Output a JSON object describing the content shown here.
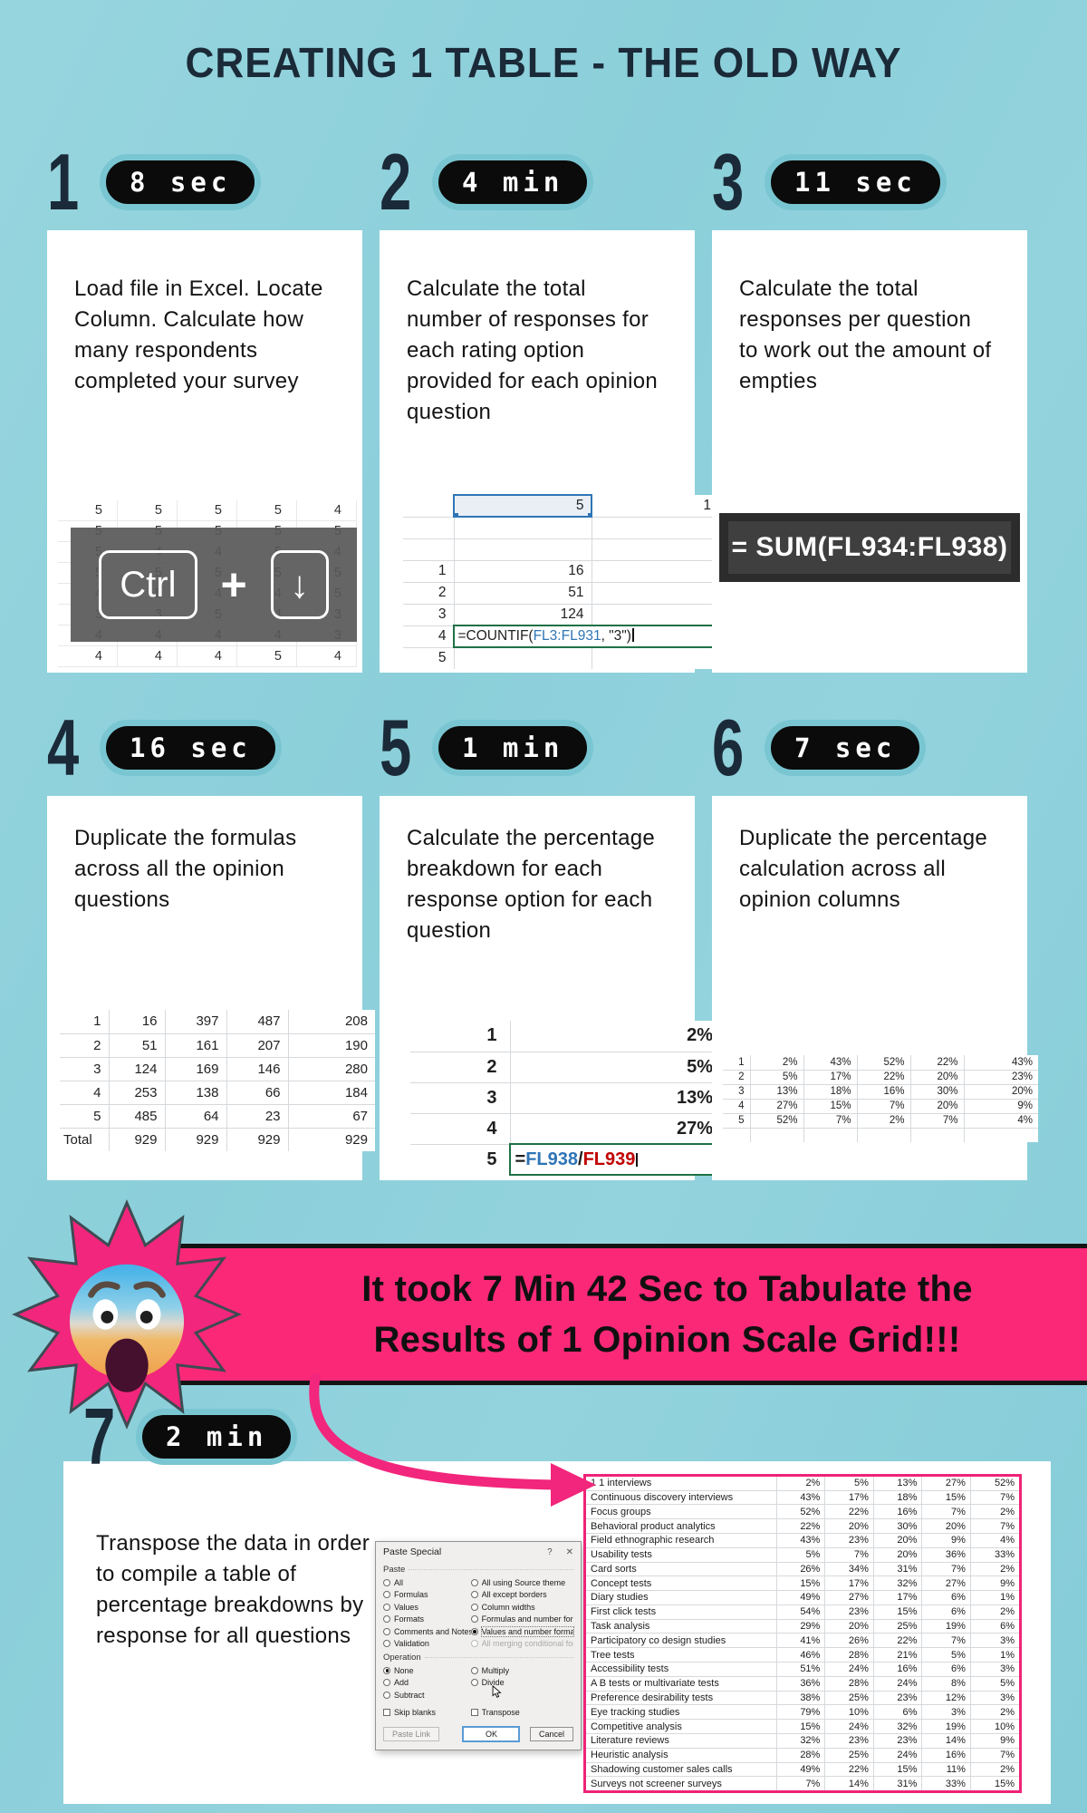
{
  "title": "CREATING 1 TABLE - THE OLD WAY",
  "colors": {
    "background": "#8ed0db",
    "card": "#ffffff",
    "badge_bg": "#0b0b0b",
    "badge_ring": "#79c6d2",
    "accent_pink": "#f2267c",
    "title_navy": "#1b2a38",
    "formula_blue": "#2e75b6",
    "formula_red": "#c00000",
    "formula_green": "#1e7145"
  },
  "steps": [
    {
      "num": "1",
      "time": "8 sec",
      "text": "Load file in Excel. Locate Column. Calculate how many respondents completed your survey"
    },
    {
      "num": "2",
      "time": "4 min",
      "text": "Calculate the total number of responses for each rating option provided for each opinion question"
    },
    {
      "num": "3",
      "time": "11 sec",
      "text": "Calculate the total responses per question to work out the amount of empties"
    },
    {
      "num": "4",
      "time": "16 sec",
      "text": "Duplicate the formulas across all the opinion questions"
    },
    {
      "num": "5",
      "time": "1 min",
      "text": "Calculate the percentage breakdown for each response option for each question"
    },
    {
      "num": "6",
      "time": "7 sec",
      "text": "Duplicate the percentage calculation across all opinion columns"
    },
    {
      "num": "7",
      "time": "2 min",
      "text": "Transpose the data in order to compile a table of percentage breakdowns by response for all questions"
    }
  ],
  "banner": {
    "line1": "It took 7 Min 42 Sec to Tabulate the",
    "line2": "Results of 1 Opinion Scale Grid!!!",
    "emoji": "face-screaming-in-fear"
  },
  "graphics": {
    "ctrl_sheet": {
      "rows": [
        [
          "5",
          "5",
          "5",
          "5",
          "4"
        ],
        [
          "5",
          "5",
          "5",
          "5",
          "5"
        ],
        [
          "5",
          "4",
          "4",
          "5",
          "4"
        ],
        [
          "5",
          "5",
          "5",
          "5",
          "5"
        ],
        [
          "4",
          "5",
          "4",
          "4",
          "5"
        ],
        [
          "3",
          "3",
          "5",
          "4",
          "3"
        ],
        [
          "4",
          "4",
          "4",
          "4",
          "3"
        ],
        [
          "4",
          "4",
          "4",
          "5",
          "4"
        ]
      ],
      "key1": "Ctrl",
      "plus": "+",
      "key2": "↓"
    },
    "countif_sheet": {
      "sel": "5",
      "adj": "1",
      "pairs": [
        [
          "1",
          "16"
        ],
        [
          "2",
          "51"
        ],
        [
          "3",
          "124"
        ]
      ],
      "frow": "4",
      "fpre": "=COUNTIF(",
      "frange": "FL3:FL931",
      "fpost": ", \"3\")",
      "last": "5"
    },
    "sum_box": "= SUM(FL934:FL938)",
    "counts_table": {
      "rows": [
        [
          "1",
          "16",
          "397",
          "487",
          "208"
        ],
        [
          "2",
          "51",
          "161",
          "207",
          "190"
        ],
        [
          "3",
          "124",
          "169",
          "146",
          "280"
        ],
        [
          "4",
          "253",
          "138",
          "66",
          "184"
        ],
        [
          "5",
          "485",
          "64",
          "23",
          "67"
        ],
        [
          "Total",
          "929",
          "929",
          "929",
          "929"
        ]
      ]
    },
    "pct_list": {
      "pairs": [
        [
          "1",
          "2%"
        ],
        [
          "2",
          "5%"
        ],
        [
          "3",
          "13%"
        ],
        [
          "4",
          "27%"
        ]
      ],
      "frow": "5",
      "feq": "=",
      "fnum": "FL938",
      "fslash": "/",
      "fden": "FL939"
    },
    "pct_grid": {
      "rows": [
        [
          "1",
          "2%",
          "43%",
          "52%",
          "22%",
          "43%"
        ],
        [
          "2",
          "5%",
          "17%",
          "22%",
          "20%",
          "23%"
        ],
        [
          "3",
          "13%",
          "18%",
          "16%",
          "30%",
          "20%"
        ],
        [
          "4",
          "27%",
          "15%",
          "7%",
          "20%",
          "9%"
        ],
        [
          "5",
          "52%",
          "7%",
          "2%",
          "7%",
          "4%"
        ],
        [
          "",
          "",
          "",
          "",
          "",
          ""
        ]
      ]
    },
    "paste_special": {
      "title": "Paste Special",
      "help": "?",
      "close": "✕",
      "paste_label": "Paste",
      "paste_left": [
        {
          "label": "All"
        },
        {
          "label": "Formulas"
        },
        {
          "label": "Values"
        },
        {
          "label": "Formats"
        },
        {
          "label": "Comments and Notes"
        },
        {
          "label": "Validation"
        }
      ],
      "paste_right": [
        {
          "label": "All using Source theme"
        },
        {
          "label": "All except borders"
        },
        {
          "label": "Column widths"
        },
        {
          "label": "Formulas and number formats"
        },
        {
          "label": "Values and number formats",
          "checked": true,
          "boxed": true
        },
        {
          "label": "All merging conditional formats",
          "disabled": true
        }
      ],
      "operation_label": "Operation",
      "op_left": [
        {
          "label": "None",
          "checked": true
        },
        {
          "label": "Add"
        },
        {
          "label": "Subtract"
        }
      ],
      "op_right": [
        {
          "label": "Multiply"
        },
        {
          "label": "Divide"
        }
      ],
      "checks_left": [
        {
          "label": "Skip blanks"
        }
      ],
      "checks_right": [
        {
          "label": "Transpose"
        }
      ],
      "buttons": {
        "paste_link": "Paste Link",
        "ok": "OK",
        "cancel": "Cancel"
      }
    },
    "final_table": {
      "rows": [
        [
          "1 1 interviews",
          "2%",
          "5%",
          "13%",
          "27%",
          "52%"
        ],
        [
          "Continuous discovery interviews",
          "43%",
          "17%",
          "18%",
          "15%",
          "7%"
        ],
        [
          "Focus groups",
          "52%",
          "22%",
          "16%",
          "7%",
          "2%"
        ],
        [
          "Behavioral  product analytics",
          "22%",
          "20%",
          "30%",
          "20%",
          "7%"
        ],
        [
          "Field  ethnographic research",
          "43%",
          "23%",
          "20%",
          "9%",
          "4%"
        ],
        [
          "Usability tests",
          "5%",
          "7%",
          "20%",
          "36%",
          "33%"
        ],
        [
          "Card sorts",
          "26%",
          "34%",
          "31%",
          "7%",
          "2%"
        ],
        [
          "Concept tests",
          "15%",
          "17%",
          "32%",
          "27%",
          "9%"
        ],
        [
          "Diary studies",
          "49%",
          "27%",
          "17%",
          "6%",
          "1%"
        ],
        [
          "First click tests",
          "54%",
          "23%",
          "15%",
          "6%",
          "2%"
        ],
        [
          "Task analysis",
          "29%",
          "20%",
          "25%",
          "19%",
          "6%"
        ],
        [
          "Participatory  co design studies",
          "41%",
          "26%",
          "22%",
          "7%",
          "3%"
        ],
        [
          "Tree tests",
          "46%",
          "28%",
          "21%",
          "5%",
          "1%"
        ],
        [
          "Accessibility tests",
          "51%",
          "24%",
          "16%",
          "6%",
          "3%"
        ],
        [
          "A B tests or multivariate tests",
          "36%",
          "28%",
          "24%",
          "8%",
          "5%"
        ],
        [
          "Preference  desirability tests",
          "38%",
          "25%",
          "23%",
          "12%",
          "3%"
        ],
        [
          "Eye tracking studies",
          "79%",
          "10%",
          "6%",
          "3%",
          "2%"
        ],
        [
          "Competitive analysis",
          "15%",
          "24%",
          "32%",
          "19%",
          "10%"
        ],
        [
          "Literature reviews",
          "32%",
          "23%",
          "23%",
          "14%",
          "9%"
        ],
        [
          "Heuristic analysis",
          "28%",
          "25%",
          "24%",
          "16%",
          "7%"
        ],
        [
          "Shadowing customer sales calls",
          "49%",
          "22%",
          "15%",
          "11%",
          "2%"
        ],
        [
          "Surveys not screener surveys",
          "7%",
          "14%",
          "31%",
          "33%",
          "15%"
        ]
      ]
    }
  }
}
